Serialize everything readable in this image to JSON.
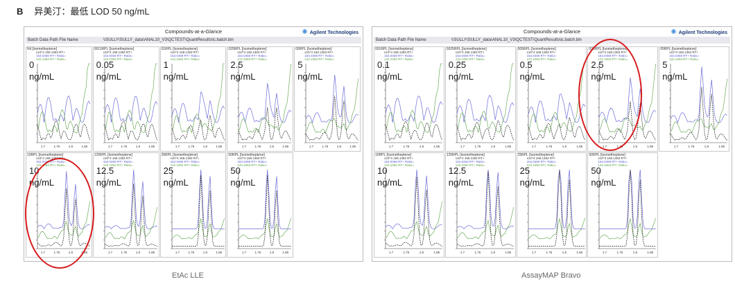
{
  "heading": {
    "letter": "B",
    "text": "异美汀：最低 LOD 50 ng/mL"
  },
  "panels": [
    {
      "title": "Compounds-at-a-Glance",
      "logo": "Agilent Technologies",
      "bar_label": "Batch Data Path File Name",
      "bar_value": "\\\\SULLY\\SULLY_data\\ANAL10_V3\\QCTEST\\QuantResults\\ic.batch.bin",
      "caption": "EtAc LLE",
      "cells": [
        {
          "title": "Nil [Isometheptene]",
          "value": "0",
          "unit": "ng/mL"
        },
        {
          "title": "0011RPL [Isometheptene]",
          "value": "0.05",
          "unit": "ng/mL"
        },
        {
          "title": "01RPL [Isometheptene]",
          "value": "1",
          "unit": "ng/mL"
        },
        {
          "title": "025RPL [Isometheptene]",
          "value": "2.5",
          "unit": "ng/mL"
        },
        {
          "title": "05RPL [Isometheptene]",
          "value": "5",
          "unit": "ng/mL"
        },
        {
          "title": "10RPL [Isometheptene]",
          "value": "10",
          "unit": "ng/mL"
        },
        {
          "title": "125RPL [Isometheptene]",
          "value": "12.5",
          "unit": "ng/mL"
        },
        {
          "title": "25RPL [Isometheptene]",
          "value": "25",
          "unit": "ng/mL"
        },
        {
          "title": "50RPL [Isometheptene]",
          "value": "50",
          "unit": "ng/mL"
        }
      ]
    },
    {
      "title": "Compounds-at-a-Glance",
      "logo": "Agilent Technologies",
      "bar_label": "Batch Data Path File Name",
      "bar_value": "\\\\SULLY\\SULLY_data\\ANAL10_V3\\QCTEST\\QuantResults\\ic.batch.bin",
      "caption": "AssayMAP Bravo",
      "cells": [
        {
          "title": "001RPL [Isometheptene]",
          "value": "0.1",
          "unit": "ng/mL"
        },
        {
          "title": "0025RPL [Isometheptene]",
          "value": "0.25",
          "unit": "ng/mL"
        },
        {
          "title": "005RPL [Isometheptene]",
          "value": "0.5",
          "unit": "ng/mL"
        },
        {
          "title": "025RPL [Isometheptene]",
          "value": "2.5",
          "unit": "ng/mL"
        },
        {
          "title": "05RPL [Isometheptene]",
          "value": "5",
          "unit": "ng/mL"
        },
        {
          "title": "10RPL [Isometheptene]",
          "value": "10",
          "unit": "ng/mL"
        },
        {
          "title": "125RPL [Isometheptene]",
          "value": "12.5",
          "unit": "ng/mL"
        },
        {
          "title": "25RPL [Isometheptene]",
          "value": "25",
          "unit": "ng/mL"
        },
        {
          "title": "50RPL [Isometheptene]",
          "value": "50",
          "unit": "ng/mL"
        }
      ]
    }
  ],
  "legend": {
    "l1": "x10^4 168.1383 RT+",
    "l2": "154.0469 RT+ Ratio=",
    "l3": "122.1063 RT+ Ratio="
  },
  "xticks": [
    "1.7",
    "1.75",
    "1.8",
    "1.85"
  ],
  "colors": {
    "accent": "#d7191c",
    "series_blue": "#6b6bd9",
    "series_green": "#6cab5a",
    "series_black": "#222222"
  }
}
